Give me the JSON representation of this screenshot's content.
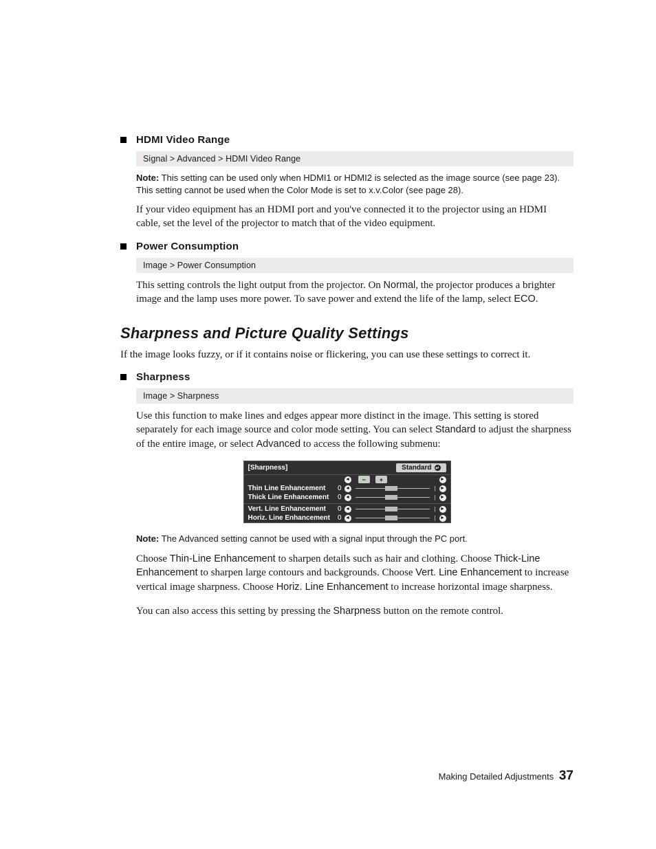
{
  "colors": {
    "page_bg": "#ffffff",
    "text": "#1a1a1a",
    "breadcrumb_bg": "#eceaeb",
    "submenu_bg": "#2f2f2f",
    "submenu_border": "#555555",
    "submenu_text": "#ffffff",
    "pill_bg": "#d0d0d0",
    "pill_text": "#111111",
    "slider_thumb": "#bbbbbb",
    "pm_btn_bg": "#c8cdc8"
  },
  "items": [
    {
      "title": "HDMI Video Range",
      "breadcrumb": "Signal > Advanced > HDMI Video Range",
      "note": "This setting can be used only when HDMI1 or HDMI2 is selected as the image source (see page 23). This setting cannot be used when the Color Mode is set to x.v.Color (see page 28).",
      "body_before": "If your video equipment has an HDMI port and you've connected it to the projector using an HDMI cable, set the level of the projector to match that of the video equipment."
    },
    {
      "title": "Power Consumption",
      "breadcrumb": "Image > Power Consumption",
      "body1": "This setting controls the light output from the projector. On ",
      "kw1": "Normal",
      "body2": ", the projector produces a brighter image and the lamp uses more power. To save power and extend the life of the lamp, select ",
      "kw2": "ECO",
      "body3": "."
    }
  ],
  "section_title": "Sharpness and Picture Quality Settings",
  "section_intro": "If the image looks fuzzy, or if it contains noise or flickering, you can use these settings to correct it.",
  "sharpness": {
    "title": "Sharpness",
    "breadcrumb": "Image > Sharpness",
    "p1a": "Use this function to make lines and edges appear more distinct in the image. This setting is stored separately for each image source and color mode setting. You can select ",
    "kw_std": "Standard",
    "p1b": " to adjust the sharpness of the entire image, or select ",
    "kw_adv": "Advanced",
    "p1c": " to access the following submenu:",
    "note2": "The Advanced setting cannot be used with a signal input through the PC port.",
    "p2a": "Choose ",
    "kw_thin": "Thin-Line Enhancement",
    "p2b": " to sharpen details such as hair and clothing. Choose ",
    "kw_thick": "Thick-Line Enhancement",
    "p2c": " to sharpen large contours and backgrounds. Choose ",
    "kw_vert": "Vert. Line Enhancement",
    "p2d": " to increase vertical image sharpness. Choose ",
    "kw_horz": "Horiz. Line Enhancement",
    "p2e": " to increase horizontal image sharpness.",
    "p3a": "You can also access this setting by pressing the ",
    "kw_btn": "Sharpness",
    "p3b": " button on the remote control."
  },
  "submenu": {
    "header": "[Sharpness]",
    "standard": "Standard",
    "minus": "−",
    "plus": "+",
    "rows": [
      {
        "label": "Thin Line Enhancement",
        "value": 0,
        "pos": 0.4,
        "sep": false
      },
      {
        "label": "Thick Line Enhancement",
        "value": 0,
        "pos": 0.4,
        "sep": false
      },
      {
        "label": "Vert. Line Enhancement",
        "value": 0,
        "pos": 0.4,
        "sep": true
      },
      {
        "label": "Horiz. Line Enhancement",
        "value": 0,
        "pos": 0.4,
        "sep": false
      }
    ]
  },
  "note_label": "Note:",
  "footer_text": "Making Detailed Adjustments",
  "footer_page": "37"
}
